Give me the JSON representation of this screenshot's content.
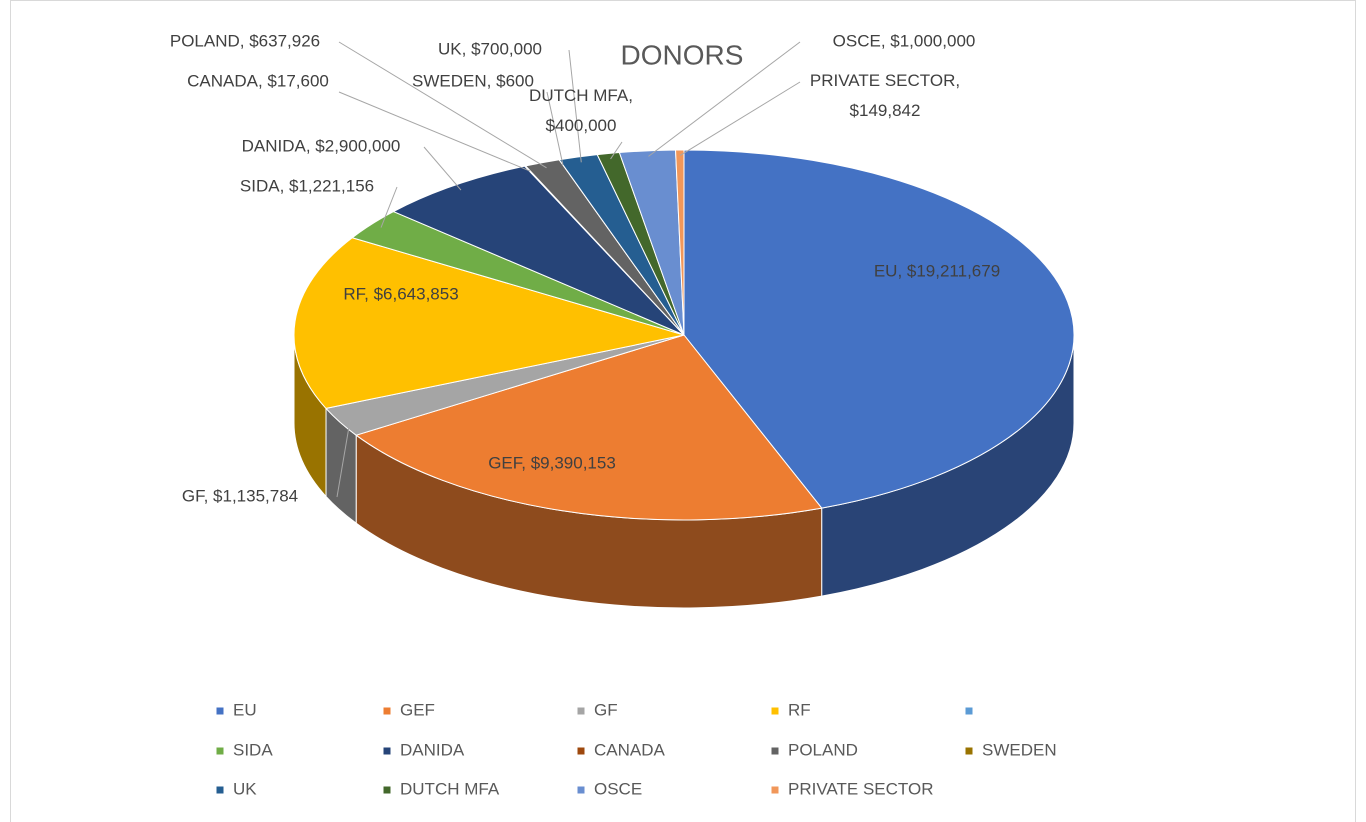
{
  "chart_data": {
    "type": "pie3d",
    "title": "DONORS",
    "categories": [
      "EU",
      "GEF",
      "GF",
      "RF",
      null,
      "SIDA",
      "DANIDA",
      "CANADA",
      "POLAND",
      "SWEDEN",
      "UK",
      "DUTCH MFA",
      "OSCE",
      "PRIVATE SECTOR"
    ],
    "values": [
      19211679,
      9390153,
      1135784,
      6643853,
      null,
      1221156,
      2900000,
      17600,
      637926,
      600,
      700000,
      400000,
      1000000,
      149842
    ],
    "value_labels": [
      "EU, $19,211,679",
      "GEF, $9,390,153",
      "GF, $1,135,784",
      "RF, $6,643,853",
      null,
      "SIDA, $1,221,156",
      "DANIDA, $2,900,000",
      "CANADA, $17,600",
      "POLAND, $637,926",
      "SWEDEN, $600",
      "UK, $700,000",
      "DUTCH MFA, $400,000",
      "OSCE, $1,000,000",
      "PRIVATE SECTOR, $149,842"
    ],
    "colors": [
      "#4472c4",
      "#ed7d31",
      "#a5a5a5",
      "#ffc000",
      "#5b9bd5",
      "#70ad47",
      "#264478",
      "#9e480e",
      "#636363",
      "#997300",
      "#255e91",
      "#43682b",
      "#698ed0",
      "#f1975a"
    ],
    "legend": "bottom"
  }
}
